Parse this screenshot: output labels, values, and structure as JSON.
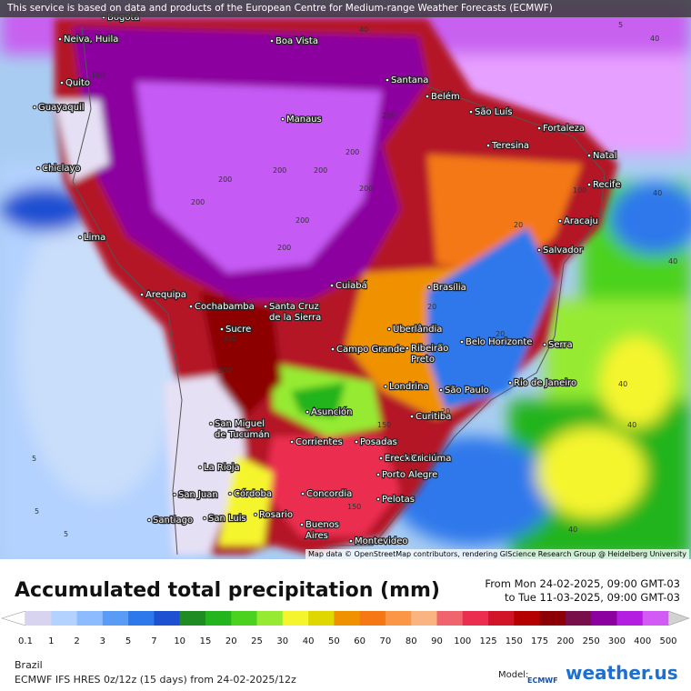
{
  "header": {
    "notice": "This service is based on data and products of the European Centre for Medium-range Weather Forecasts (ECMWF)"
  },
  "map": {
    "cities": [
      [
        "Bogotá"
      ],
      [
        "Neiva, Huila"
      ],
      [
        "Boa Vista"
      ],
      [
        "Quito"
      ],
      [
        "Santana"
      ],
      [
        "Belém"
      ],
      [
        "São Luís"
      ],
      [
        "Fortaleza"
      ],
      [
        "Guayaquil"
      ],
      [
        "Manaus"
      ],
      [
        "Teresina"
      ],
      [
        "Natal"
      ],
      [
        "Chiclayo"
      ],
      [
        "Recife"
      ],
      [
        "Aracaju"
      ],
      [
        "Lima"
      ],
      [
        "Salvador"
      ],
      [
        "Cuiabá"
      ],
      [
        "Brasília"
      ],
      [
        "Arequipa"
      ],
      [
        "Cochabamba"
      ],
      [
        "Santa Cruz",
        "de la Sierra"
      ],
      [
        "Sucre"
      ],
      [
        "Uberlândia"
      ],
      [
        "Belo Horizonte"
      ],
      [
        "Campo Grande"
      ],
      [
        "Ribeirão",
        "Preto"
      ],
      [
        "Serra"
      ],
      [
        "Londrina"
      ],
      [
        "São Paulo"
      ],
      [
        "Rio de Janeiro"
      ],
      [
        "Asunción"
      ],
      [
        "San Miguel",
        "de Tucumán"
      ],
      [
        "Curitiba"
      ],
      [
        "Corrientes"
      ],
      [
        "Posadas"
      ],
      [
        "Erechim"
      ],
      [
        "Criciúma"
      ],
      [
        "La Rioja"
      ],
      [
        "Porto Alegre"
      ],
      [
        "San Juan"
      ],
      [
        "Córdoba"
      ],
      [
        "Concordia"
      ],
      [
        "Pelotas"
      ],
      [
        "Santiago"
      ],
      [
        "San Luis"
      ],
      [
        "Rosario"
      ],
      [
        "Buenos",
        "Aires"
      ],
      [
        "Montevideo"
      ]
    ],
    "contour_labels": [
      200,
      200,
      200,
      200,
      200,
      200,
      200,
      200,
      200,
      100,
      100,
      40,
      40,
      40,
      40,
      40,
      40,
      40,
      5,
      5,
      5,
      5,
      20,
      20,
      20,
      20,
      300,
      300,
      150,
      150
    ],
    "attribution": "Map data © OpenStreetMap contributors, rendering GIScience Research Group @ Heidelberg University"
  },
  "legend": {
    "title": "Accumulated total precipitation (mm)",
    "period": [
      "From Mon 24-02-2025, 09:00 GMT-03",
      "to Tue 11-03-2025, 09:00 GMT-03"
    ],
    "ticks": [
      0.1,
      1,
      2,
      3,
      5,
      7,
      10,
      15,
      20,
      25,
      30,
      40,
      50,
      60,
      70,
      80,
      90,
      100,
      125,
      150,
      175,
      200,
      250,
      300,
      400,
      500
    ],
    "colors": [
      "#ffffff",
      "#d8d4f0",
      "#b4d2ff",
      "#8cbcff",
      "#5a9cf5",
      "#2d78eb",
      "#1e50d2",
      "#1e8c23",
      "#23b41e",
      "#4bd21e",
      "#96eb32",
      "#f5f52d",
      "#e1d700",
      "#f09100",
      "#f57814",
      "#fa9646",
      "#fab482",
      "#f0646e",
      "#eb2d50",
      "#d21428",
      "#b40000",
      "#8c0005",
      "#780f4b",
      "#8c00a0",
      "#b41ee1",
      "#d25af5",
      "#e696ff",
      "#f0c8ff",
      "#d2d2d2"
    ]
  },
  "footer": {
    "region": "Brazil",
    "model_run": "ECMWF IFS HRES 0z/12z (15 days) from 24-02-2025/12z",
    "model_label": "Model:",
    "model_logo": "ECMWF",
    "brand": "weather.us"
  }
}
